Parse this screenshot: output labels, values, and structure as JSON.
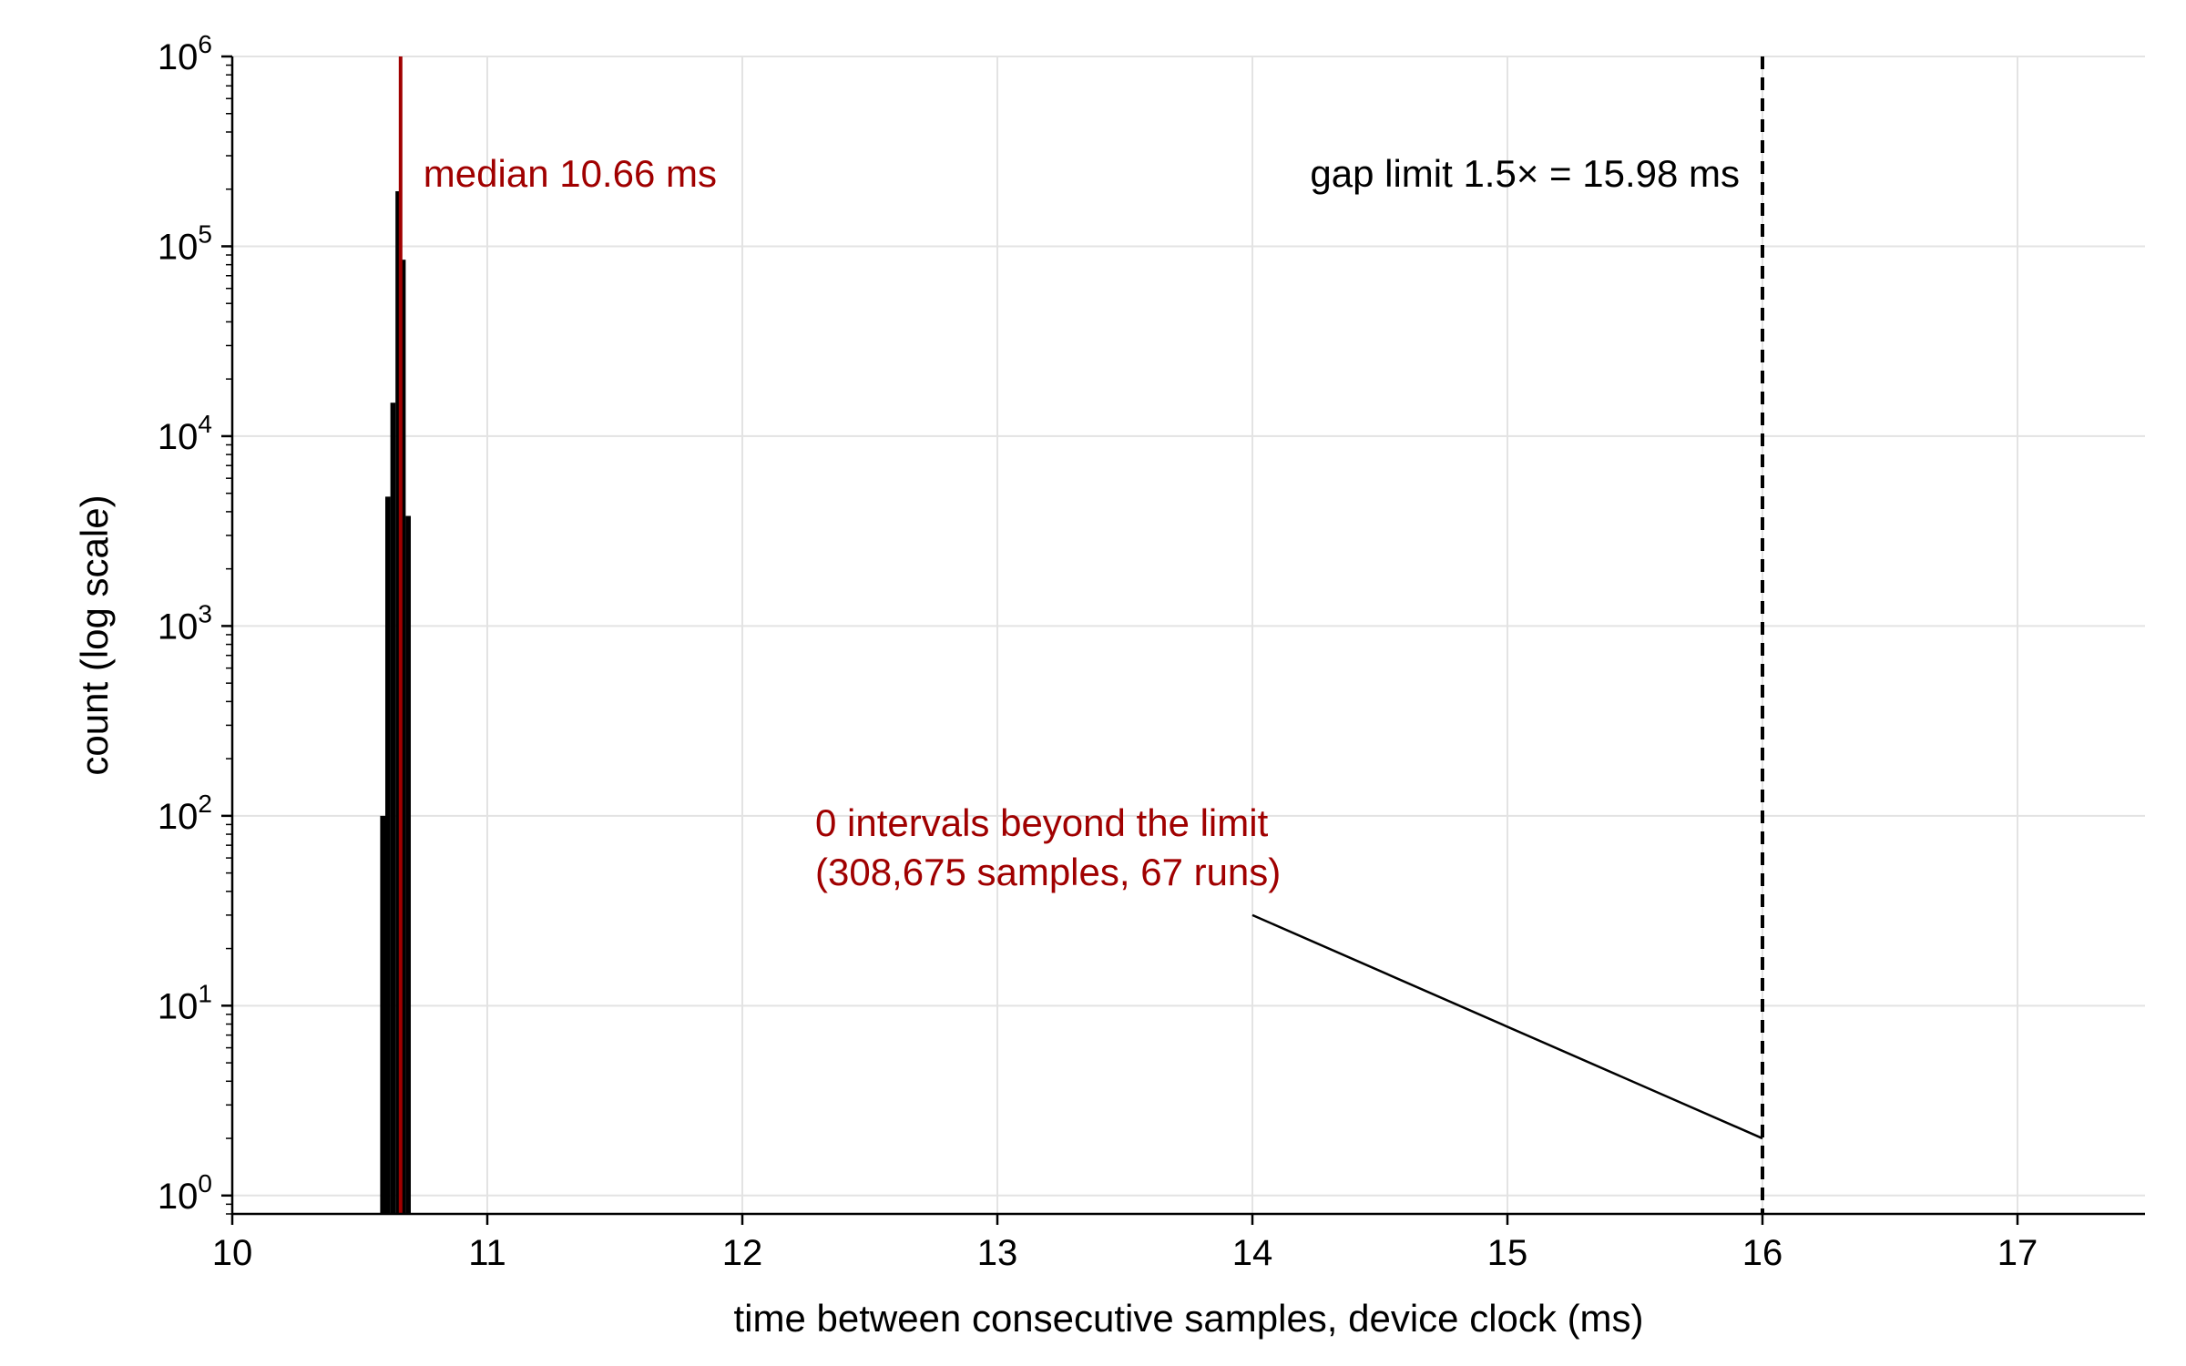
{
  "chart_data": {
    "type": "bar",
    "title": "",
    "xlabel": "time between consecutive samples, device clock (ms)",
    "ylabel": "count (log scale)",
    "x_scale": "linear",
    "y_scale": "log",
    "xlim": [
      10,
      17.5
    ],
    "ylim": [
      0.8,
      1000000
    ],
    "grid": true,
    "x_ticks": [
      10,
      11,
      12,
      13,
      14,
      15,
      16,
      17
    ],
    "y_ticks": [
      {
        "value": 1,
        "base": "10",
        "exp": "0"
      },
      {
        "value": 10,
        "base": "10",
        "exp": "1"
      },
      {
        "value": 100,
        "base": "10",
        "exp": "2"
      },
      {
        "value": 1000,
        "base": "10",
        "exp": "3"
      },
      {
        "value": 10000,
        "base": "10",
        "exp": "4"
      },
      {
        "value": 100000,
        "base": "10",
        "exp": "5"
      },
      {
        "value": 1000000,
        "base": "10",
        "exp": "6"
      }
    ],
    "bin_width": 0.02,
    "bins": [
      {
        "x": 10.59,
        "count": 100
      },
      {
        "x": 10.61,
        "count": 4800
      },
      {
        "x": 10.63,
        "count": 15000
      },
      {
        "x": 10.65,
        "count": 195000
      },
      {
        "x": 10.67,
        "count": 85000
      },
      {
        "x": 10.69,
        "count": 3800
      }
    ],
    "bar_color": "#000000",
    "median": {
      "x": 10.66,
      "color": "#a00000",
      "label": "median 10.66 ms"
    },
    "gap_limit": {
      "x": 16.0,
      "color": "#000000",
      "style": "dashed",
      "label": "gap limit 1.5× = 15.98 ms"
    },
    "annotation": {
      "lines": [
        "0 intervals beyond the limit",
        "(308,675 samples, 67 runs)"
      ],
      "color": "#a00000",
      "pointer_from": {
        "x": 14.0,
        "y": 30
      },
      "pointer_to": {
        "x": 16.0,
        "y": 2
      }
    }
  }
}
